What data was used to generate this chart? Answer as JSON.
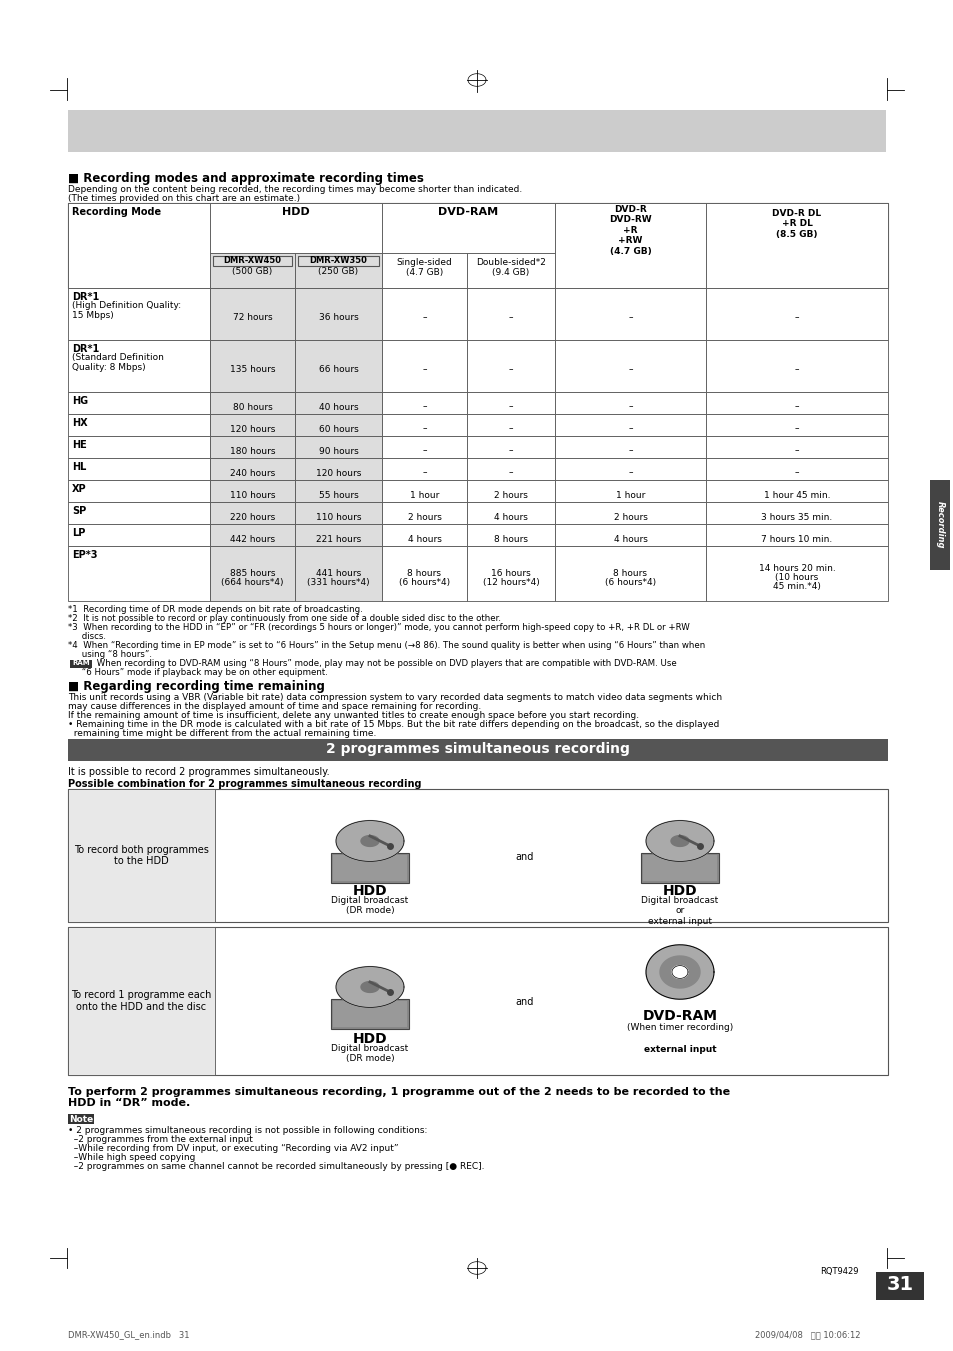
{
  "page_bg": "#ffffff",
  "title_section1": "■ Recording modes and approximate recording times",
  "subtitle1": "Depending on the content being recorded, the recording times may become shorter than indicated.",
  "subtitle2": "(The times provided on this chart are an estimate.)",
  "rows": [
    [
      "DR*1\n(High Definition Quality:\n15 Mbps)",
      "72 hours",
      "36 hours",
      "–",
      "–",
      "–",
      "–"
    ],
    [
      "DR*1\n(Standard Definition\nQuality: 8 Mbps)",
      "135 hours",
      "66 hours",
      "–",
      "–",
      "–",
      "–"
    ],
    [
      "HG",
      "80 hours",
      "40 hours",
      "–",
      "–",
      "–",
      "–"
    ],
    [
      "HX",
      "120 hours",
      "60 hours",
      "–",
      "–",
      "–",
      "–"
    ],
    [
      "HE",
      "180 hours",
      "90 hours",
      "–",
      "–",
      "–",
      "–"
    ],
    [
      "HL",
      "240 hours",
      "120 hours",
      "–",
      "–",
      "–",
      "–"
    ],
    [
      "XP",
      "110 hours",
      "55 hours",
      "1 hour",
      "2 hours",
      "1 hour",
      "1 hour 45 min."
    ],
    [
      "SP",
      "220 hours",
      "110 hours",
      "2 hours",
      "4 hours",
      "2 hours",
      "3 hours 35 min."
    ],
    [
      "LP",
      "442 hours",
      "221 hours",
      "4 hours",
      "8 hours",
      "4 hours",
      "7 hours 10 min."
    ],
    [
      "EP*3",
      "885 hours\n(664 hours*4)",
      "441 hours\n(331 hours*4)",
      "8 hours\n(6 hours*4)",
      "16 hours\n(12 hours*4)",
      "8 hours\n(6 hours*4)",
      "14 hours 20 min.\n(10 hours\n45 min.*4)"
    ]
  ],
  "footnote1": "*1  Recording time of DR mode depends on bit rate of broadcasting.",
  "footnote2": "*2  It is not possible to record or play continuously from one side of a double sided disc to the other.",
  "footnote3": "*3  When recording to the HDD in “EP” or “FR (recordings 5 hours or longer)” mode, you cannot perform high-speed copy to +R, +R DL or +RW",
  "footnote3b": "     discs.",
  "footnote4": "*4  When “Recording time in EP mode” is set to “6 Hours” in the Setup menu (→8 86). The sound quality is better when using “6 Hours” than when",
  "footnote4b": "     using “8 hours”.",
  "footnote5": " When recording to DVD-RAM using “8 Hours” mode, play may not be possible on DVD players that are compatible with DVD-RAM. Use",
  "footnote5b": "     “6 Hours” mode if playback may be on other equipment.",
  "title_section2": "■ Regarding recording time remaining",
  "section2_text1": "This unit records using a VBR (Variable bit rate) data compression system to vary recorded data segments to match video data segments which",
  "section2_text1b": "may cause differences in the displayed amount of time and space remaining for recording.",
  "section2_text2": "If the remaining amount of time is insufficient, delete any unwanted titles to create enough space before you start recording.",
  "section2_text3": "• Remaining time in the DR mode is calculated with a bit rate of 15 Mbps. But the bit rate differs depending on the broadcast, so the displayed",
  "section2_text3b": "  remaining time might be different from the actual remaining time.",
  "section3_bar_text": "2 programmes simultaneous recording",
  "section3_intro": "It is possible to record 2 programmes simultaneously.",
  "section3_subhead": "Possible combination for 2 programmes simultaneous recording",
  "box1_left": "To record both programmes\nto the HDD",
  "box1_center_label": "HDD",
  "box1_center_sub": "Digital broadcast\n(DR mode)",
  "box1_and": "and",
  "box1_right_label": "HDD",
  "box1_right_sub": "Digital broadcast\nor\nexternal input",
  "box2_left": "To record 1 programme each\nonto the HDD and the disc",
  "box2_center_label": "HDD",
  "box2_center_sub": "Digital broadcast\n(DR mode)",
  "box2_and": "and",
  "box2_right_label": "DVD-RAM",
  "box2_right_sub1": "(When timer recording)",
  "box2_right_sub2": "external input",
  "conclusion": "To perform 2 programmes simultaneous recording, 1 programme out of the 2 needs to be recorded to the\nHDD in “DR” mode.",
  "note_line1": "• 2 programmes simultaneous recording is not possible in following conditions:",
  "note_line2": "  –2 programmes from the external input",
  "note_line3": "  –While recording from DV input, or executing “Recording via AV2 input”",
  "note_line4": "  –While high speed copying",
  "note_line5": "  –2 programmes on same channel cannot be recorded simultaneously by pressing [● REC].",
  "page_number": "31",
  "catalog_number": "RQT9429",
  "footer_left": "DMR-XW450_GL_en.indb   31",
  "footer_right": "2009/04/08   午前 10:06:12"
}
